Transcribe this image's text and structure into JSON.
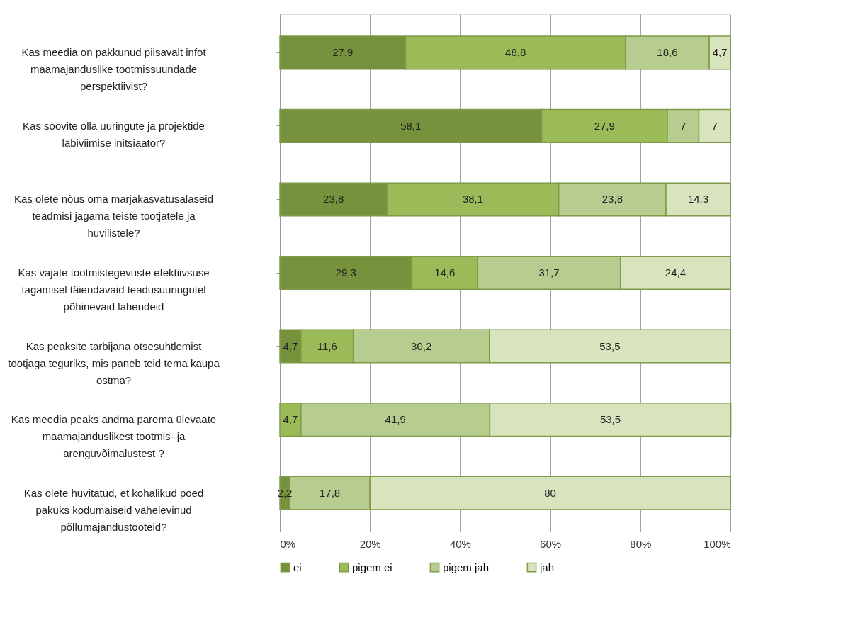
{
  "chart_data": {
    "type": "bar",
    "orientation": "horizontal",
    "stacked": true,
    "categories": [
      "Kas meedia on pakkunud piisavalt infot maamajanduslike tootmissuundade perspektiivist?",
      "Kas soovite olla uuringute ja projektide läbiviimise initsiaator?",
      "Kas olete nõus oma marjakasvatusalaseid teadmisi jagama teiste tootjatele ja huvilistele?",
      "Kas vajate tootmistegevuste efektiivsuse tagamisel täiendavaid teadusuuringutel põhinevaid lahendeid",
      "Kas peaksite tarbijana otsesuhtlemist tootjaga teguriks, mis paneb teid tema kaupa ostma?",
      "Kas meedia peaks andma parema ülevaate maamajanduslikest tootmis- ja arenguvõimalustest ?",
      "Kas olete huvitatud, et kohalikud poed pakuks kodumaiseid vähelevinud põllumajandustooteid?"
    ],
    "series": [
      {
        "name": "ei",
        "color": "#76923c",
        "values": [
          27.9,
          58.1,
          23.8,
          29.3,
          4.7,
          null,
          2.2
        ],
        "value_labels": [
          "27,9",
          "58,1",
          "23,8",
          "29,3",
          "4,7",
          null,
          "2,2"
        ]
      },
      {
        "name": "pigem ei",
        "color": "#9bbb59",
        "values": [
          48.8,
          27.9,
          38.1,
          14.6,
          11.6,
          4.7,
          null
        ],
        "value_labels": [
          "48,8",
          "27,9",
          "38,1",
          "14,6",
          "11,6",
          "4,7",
          null
        ]
      },
      {
        "name": "pigem jah",
        "color": "#b7cd8f",
        "values": [
          18.6,
          7,
          23.8,
          31.7,
          30.2,
          41.9,
          17.8
        ],
        "value_labels": [
          "18,6",
          "7",
          "23,8",
          "31,7",
          "30,2",
          "41,9",
          "17,8"
        ]
      },
      {
        "name": "jah",
        "color": "#d7e4bd",
        "values": [
          4.7,
          7,
          14.3,
          24.4,
          53.5,
          53.5,
          80
        ],
        "value_labels": [
          "4,7",
          "7",
          "14,3",
          "24,4",
          "53,5",
          "53,5",
          "80"
        ]
      }
    ],
    "xlim": [
      0,
      100
    ],
    "xticks": [
      {
        "value": 0,
        "label": "0%"
      },
      {
        "value": 20,
        "label": "20%"
      },
      {
        "value": 40,
        "label": "40%"
      },
      {
        "value": 60,
        "label": "60%"
      },
      {
        "value": 80,
        "label": "80%"
      },
      {
        "value": 100,
        "label": "100%"
      }
    ],
    "grid": "x",
    "legend": "bottom"
  }
}
